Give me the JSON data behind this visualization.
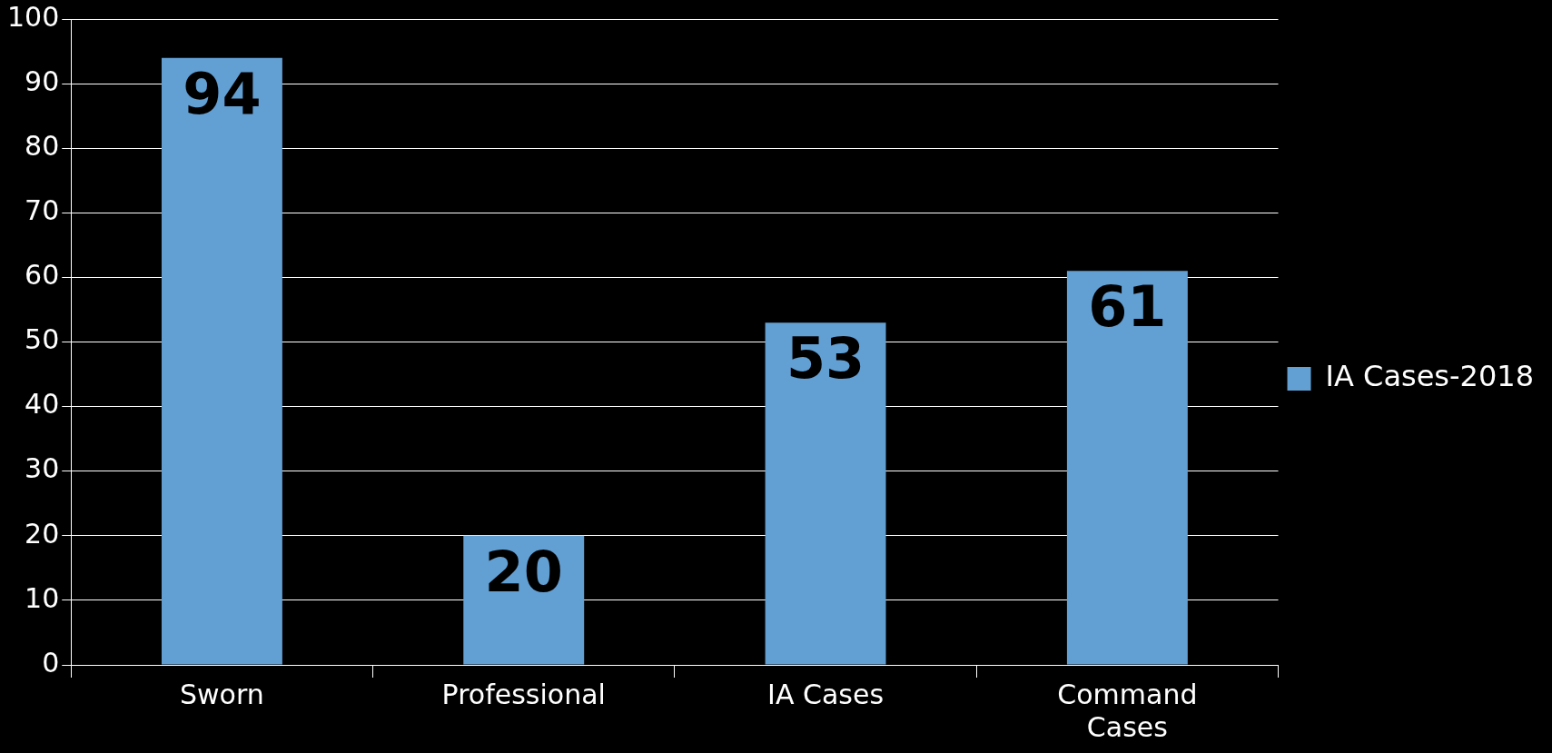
{
  "chart_data": {
    "type": "bar",
    "categories": [
      "Sworn",
      "Professional",
      "IA Cases",
      "Command Cases"
    ],
    "series": [
      {
        "name": "IA Cases-2018",
        "color": "#629fd3",
        "values": [
          94,
          20,
          53,
          61
        ]
      }
    ],
    "ylim": [
      0,
      100
    ],
    "yticks": [
      0,
      10,
      20,
      30,
      40,
      50,
      60,
      70,
      80,
      90,
      100
    ],
    "grid": "y",
    "legend": "right",
    "data_labels": true
  }
}
